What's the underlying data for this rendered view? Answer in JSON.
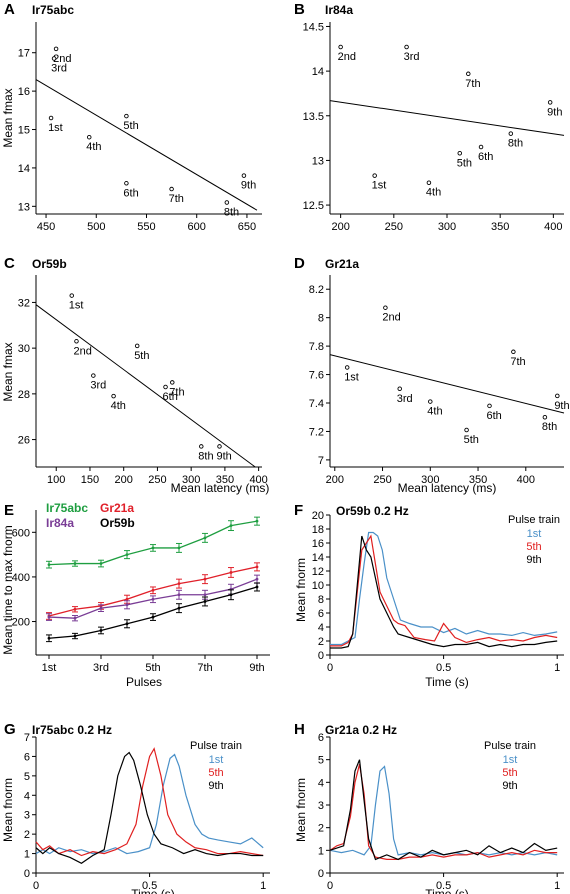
{
  "colors": {
    "blue": "#4a90c8",
    "red": "#e02020",
    "black": "#000000",
    "green": "#1e9e40",
    "purple": "#7a3d96",
    "crimson": "#e0202a"
  },
  "chart_data": [
    {
      "panel": "A",
      "type": "scatter",
      "title": "Ir75abc",
      "xlabel": "",
      "ylabel": "Mean fmax",
      "xlim": [
        440,
        665
      ],
      "ylim": [
        12.8,
        17.8
      ],
      "xticks": [
        "450",
        "500",
        "550",
        "600",
        "650"
      ],
      "xtick_values": [
        450,
        500,
        550,
        600,
        650
      ],
      "yticks": [
        "13",
        "14",
        "15",
        "16",
        "17"
      ],
      "ytick_values": [
        13,
        14,
        15,
        16,
        17
      ],
      "points": [
        {
          "label": "1st",
          "x": 455,
          "y": 15.3
        },
        {
          "label": "2nd",
          "x": 460,
          "y": 17.1
        },
        {
          "label": "3rd",
          "x": 458,
          "y": 16.85
        },
        {
          "label": "4th",
          "x": 493,
          "y": 14.8
        },
        {
          "label": "5th",
          "x": 530,
          "y": 15.35
        },
        {
          "label": "6th",
          "x": 530,
          "y": 13.6
        },
        {
          "label": "7th",
          "x": 575,
          "y": 13.45
        },
        {
          "label": "8th",
          "x": 630,
          "y": 13.1
        },
        {
          "label": "9th",
          "x": 647,
          "y": 13.8
        }
      ],
      "fit": {
        "x": [
          440,
          660
        ],
        "y": [
          16.3,
          12.9
        ]
      }
    },
    {
      "panel": "B",
      "type": "scatter",
      "title": "Ir84a",
      "xlabel": "",
      "ylabel": "",
      "xlim": [
        190,
        410
      ],
      "ylim": [
        12.4,
        14.55
      ],
      "xticks": [
        "200",
        "250",
        "300",
        "350",
        "400"
      ],
      "xtick_values": [
        200,
        250,
        300,
        350,
        400
      ],
      "yticks": [
        "12.5",
        "13",
        "13.5",
        "14",
        "14.5"
      ],
      "ytick_values": [
        12.5,
        13,
        13.5,
        14,
        14.5
      ],
      "points": [
        {
          "label": "1st",
          "x": 232,
          "y": 12.83
        },
        {
          "label": "2nd",
          "x": 200,
          "y": 14.27
        },
        {
          "label": "3rd",
          "x": 262,
          "y": 14.27
        },
        {
          "label": "4th",
          "x": 283,
          "y": 12.75
        },
        {
          "label": "5th",
          "x": 312,
          "y": 13.08
        },
        {
          "label": "6th",
          "x": 332,
          "y": 13.15
        },
        {
          "label": "7th",
          "x": 320,
          "y": 13.97
        },
        {
          "label": "8th",
          "x": 360,
          "y": 13.3
        },
        {
          "label": "9th",
          "x": 397,
          "y": 13.65
        }
      ],
      "fit": {
        "x": [
          190,
          410
        ],
        "y": [
          13.67,
          13.28
        ]
      }
    },
    {
      "panel": "C",
      "type": "scatter",
      "title": "Or59b",
      "xlabel": "Mean latency (ms)",
      "ylabel": "Mean fmax",
      "xlim": [
        70,
        405
      ],
      "ylim": [
        24.8,
        33.2
      ],
      "xticks": [
        "100",
        "150",
        "200",
        "250",
        "300",
        "350",
        "400"
      ],
      "xtick_values": [
        100,
        150,
        200,
        250,
        300,
        350,
        400
      ],
      "yticks": [
        "26",
        "28",
        "30",
        "32"
      ],
      "ytick_values": [
        26,
        28,
        30,
        32
      ],
      "points": [
        {
          "label": "1st",
          "x": 123,
          "y": 32.3
        },
        {
          "label": "2nd",
          "x": 130,
          "y": 30.3
        },
        {
          "label": "3rd",
          "x": 155,
          "y": 28.8
        },
        {
          "label": "4th",
          "x": 185,
          "y": 27.9
        },
        {
          "label": "5th",
          "x": 220,
          "y": 30.1
        },
        {
          "label": "6th",
          "x": 262,
          "y": 28.3
        },
        {
          "label": "7th",
          "x": 272,
          "y": 28.5
        },
        {
          "label": "8th",
          "x": 315,
          "y": 25.7
        },
        {
          "label": "9th",
          "x": 342,
          "y": 25.7
        }
      ],
      "fit": {
        "x": [
          70,
          395
        ],
        "y": [
          31.9,
          24.8
        ]
      }
    },
    {
      "panel": "D",
      "type": "scatter",
      "title": "Gr21a",
      "xlabel": "Mean latency (ms)",
      "ylabel": "",
      "xlim": [
        195,
        440
      ],
      "ylim": [
        6.95,
        8.3
      ],
      "xticks": [
        "200",
        "250",
        "300",
        "350",
        "400"
      ],
      "xtick_values": [
        200,
        250,
        300,
        350,
        400
      ],
      "yticks": [
        "7",
        "7.2",
        "7.4",
        "7.6",
        "7.8",
        "8",
        "8.2"
      ],
      "ytick_values": [
        7,
        7.2,
        7.4,
        7.6,
        7.8,
        8,
        8.2
      ],
      "points": [
        {
          "label": "1st",
          "x": 213,
          "y": 7.65
        },
        {
          "label": "2nd",
          "x": 253,
          "y": 8.07
        },
        {
          "label": "3rd",
          "x": 268,
          "y": 7.5
        },
        {
          "label": "4th",
          "x": 300,
          "y": 7.41
        },
        {
          "label": "5th",
          "x": 338,
          "y": 7.21
        },
        {
          "label": "6th",
          "x": 362,
          "y": 7.38
        },
        {
          "label": "7th",
          "x": 387,
          "y": 7.76
        },
        {
          "label": "8th",
          "x": 420,
          "y": 7.3
        },
        {
          "label": "9th",
          "x": 433,
          "y": 7.45
        }
      ],
      "fit": {
        "x": [
          195,
          440
        ],
        "y": [
          7.74,
          7.33
        ]
      }
    },
    {
      "panel": "E",
      "type": "line",
      "title": "",
      "xlabel": "Pulses",
      "ylabel": "Mean time to max fnorm",
      "xlim": [
        0.5,
        9.5
      ],
      "ylim": [
        50,
        700
      ],
      "xticks": [
        "1st",
        "3rd",
        "5th",
        "7th",
        "9th"
      ],
      "xtick_values": [
        1,
        3,
        5,
        7,
        9
      ],
      "yticks": [
        "200",
        "400",
        "600"
      ],
      "ytick_values": [
        200,
        400,
        600
      ],
      "series": [
        {
          "name": "Ir75abc",
          "color": "#1e9e40",
          "y": [
            455,
            460,
            460,
            500,
            530,
            530,
            575,
            630,
            650
          ]
        },
        {
          "name": "Gr21a",
          "color": "#e0202a",
          "y": [
            225,
            255,
            270,
            300,
            340,
            370,
            390,
            420,
            445
          ]
        },
        {
          "name": "Ir84a",
          "color": "#7a3d96",
          "y": [
            220,
            215,
            260,
            275,
            300,
            320,
            320,
            345,
            390
          ]
        },
        {
          "name": "Or59b",
          "color": "#000000",
          "y": [
            125,
            135,
            160,
            190,
            220,
            260,
            290,
            320,
            355
          ]
        }
      ],
      "errors": [
        15,
        12,
        15,
        18,
        15,
        20,
        20,
        22,
        18
      ]
    },
    {
      "panel": "F",
      "type": "line",
      "title": "Or59b 0.2 Hz",
      "xlabel": "Time (s)",
      "ylabel": "Mean fnorm",
      "xlim": [
        0,
        1.03
      ],
      "ylim": [
        0,
        20
      ],
      "xticks": [
        "0",
        "0.5",
        "1"
      ],
      "xtick_values": [
        0,
        0.5,
        1
      ],
      "yticks": [
        "0",
        "2",
        "4",
        "6",
        "8",
        "10",
        "12",
        "14",
        "16",
        "18",
        "20"
      ],
      "ytick_values": [
        0,
        2,
        4,
        6,
        8,
        10,
        12,
        14,
        16,
        18,
        20
      ],
      "legend_title": "Pulse train",
      "series": [
        {
          "name": "1st",
          "color": "#4a90c8",
          "x": [
            0,
            0.05,
            0.08,
            0.11,
            0.13,
            0.15,
            0.17,
            0.19,
            0.21,
            0.23,
            0.25,
            0.28,
            0.31,
            0.35,
            0.4,
            0.45,
            0.5,
            0.55,
            0.6,
            0.65,
            0.7,
            0.75,
            0.8,
            0.85,
            0.9,
            0.95,
            1.0
          ],
          "y": [
            1.5,
            1.5,
            2,
            2.5,
            8,
            13,
            17.5,
            17.5,
            17,
            15,
            11,
            8,
            5,
            4.5,
            4,
            4,
            3.2,
            3.8,
            3,
            3.5,
            3,
            3,
            2.8,
            3.2,
            2.8,
            3,
            3.3
          ]
        },
        {
          "name": "5th",
          "color": "#e02020",
          "x": [
            0,
            0.05,
            0.08,
            0.1,
            0.12,
            0.14,
            0.16,
            0.18,
            0.2,
            0.22,
            0.25,
            0.28,
            0.3,
            0.33,
            0.37,
            0.42,
            0.46,
            0.5,
            0.55,
            0.6,
            0.65,
            0.7,
            0.75,
            0.8,
            0.85,
            0.9,
            0.95,
            1.0
          ],
          "y": [
            1.3,
            1.3,
            1.8,
            3,
            9,
            15,
            16,
            17,
            13,
            9,
            7,
            5,
            4.5,
            4.2,
            2.5,
            2.2,
            2,
            4.5,
            2.5,
            1.8,
            2.2,
            2.5,
            2,
            2.2,
            2,
            2.5,
            2.8,
            2.5
          ]
        },
        {
          "name": "9th",
          "color": "#000000",
          "x": [
            0,
            0.05,
            0.08,
            0.1,
            0.12,
            0.14,
            0.16,
            0.18,
            0.2,
            0.22,
            0.25,
            0.28,
            0.3,
            0.35,
            0.4,
            0.45,
            0.5,
            0.55,
            0.6,
            0.65,
            0.7,
            0.75,
            0.8,
            0.85,
            0.9,
            0.95,
            1.0
          ],
          "y": [
            1,
            1,
            1.2,
            3,
            10,
            17,
            15,
            14,
            11,
            8,
            6,
            4,
            3,
            2.5,
            2,
            1.5,
            1.2,
            1.5,
            1.5,
            1.8,
            1.2,
            1.5,
            1.2,
            1.5,
            1.5,
            1.8,
            2
          ]
        }
      ]
    },
    {
      "panel": "G",
      "type": "line",
      "title": "Ir75abc 0.2 Hz",
      "xlabel": "Time (s)",
      "ylabel": "Mean fnorm",
      "xlim": [
        0,
        1.03
      ],
      "ylim": [
        0,
        7
      ],
      "xticks": [
        "0",
        "0.5",
        "1"
      ],
      "xtick_values": [
        0,
        0.5,
        1
      ],
      "yticks": [
        "0",
        "1",
        "2",
        "3",
        "4",
        "5",
        "6",
        "7"
      ],
      "ytick_values": [
        0,
        1,
        2,
        3,
        4,
        5,
        6,
        7
      ],
      "legend_title": "Pulse train",
      "series": [
        {
          "name": "1st",
          "color": "#4a90c8",
          "x": [
            0,
            0.03,
            0.06,
            0.1,
            0.15,
            0.2,
            0.25,
            0.3,
            0.35,
            0.4,
            0.45,
            0.5,
            0.53,
            0.56,
            0.59,
            0.61,
            0.63,
            0.66,
            0.7,
            0.73,
            0.76,
            0.8,
            0.85,
            0.9,
            0.95,
            1.0
          ],
          "y": [
            1,
            1.2,
            1,
            1.3,
            1.1,
            1.2,
            1,
            1.1,
            1.3,
            1,
            1.1,
            1.3,
            2.5,
            4.5,
            5.9,
            6.1,
            5.5,
            4,
            2.5,
            2,
            1.8,
            1.7,
            1.6,
            1.5,
            1.8,
            1.3
          ]
        },
        {
          "name": "5th",
          "color": "#e02020",
          "x": [
            0,
            0.03,
            0.06,
            0.1,
            0.15,
            0.2,
            0.25,
            0.3,
            0.35,
            0.4,
            0.44,
            0.47,
            0.5,
            0.52,
            0.55,
            0.58,
            0.62,
            0.66,
            0.7,
            0.75,
            0.8,
            0.85,
            0.9,
            0.95,
            1.0
          ],
          "y": [
            1.6,
            1.2,
            1.4,
            1,
            1.2,
            0.9,
            1.1,
            1,
            1.2,
            1.5,
            2.5,
            4.5,
            6,
            6.4,
            5,
            3,
            2,
            1.6,
            1.3,
            1.2,
            1,
            1,
            1.1,
            1,
            0.9
          ]
        },
        {
          "name": "9th",
          "color": "#000000",
          "x": [
            0,
            0.03,
            0.06,
            0.1,
            0.15,
            0.2,
            0.25,
            0.3,
            0.33,
            0.36,
            0.39,
            0.41,
            0.43,
            0.46,
            0.49,
            0.52,
            0.55,
            0.6,
            0.65,
            0.7,
            0.75,
            0.8,
            0.85,
            0.9,
            0.95,
            1.0
          ],
          "y": [
            1.3,
            1,
            1.3,
            1,
            0.8,
            0.5,
            0.9,
            1.2,
            3,
            5,
            6,
            6.2,
            5.8,
            4.5,
            3,
            2,
            1.5,
            1.3,
            1,
            1.2,
            1,
            0.9,
            1,
            1,
            0.9,
            0.9
          ]
        }
      ]
    },
    {
      "panel": "H",
      "type": "line",
      "title": "Gr21a 0.2 Hz",
      "xlabel": "Time (s)",
      "ylabel": "Mean fnorm",
      "xlim": [
        0,
        1.03
      ],
      "ylim": [
        0,
        6
      ],
      "xticks": [
        "0",
        "0.5",
        "1"
      ],
      "xtick_values": [
        0,
        0.5,
        1
      ],
      "yticks": [
        "0",
        "1",
        "2",
        "3",
        "4",
        "5",
        "6"
      ],
      "ytick_values": [
        0,
        1,
        2,
        3,
        4,
        5,
        6
      ],
      "legend_title": "Pulse train",
      "series": [
        {
          "name": "1st",
          "color": "#4a90c8",
          "x": [
            0,
            0.05,
            0.1,
            0.15,
            0.18,
            0.2,
            0.22,
            0.24,
            0.26,
            0.28,
            0.3,
            0.35,
            0.4,
            0.45,
            0.5,
            0.55,
            0.6,
            0.65,
            0.7,
            0.75,
            0.8,
            0.85,
            0.9,
            0.95,
            1.0
          ],
          "y": [
            1,
            0.9,
            1,
            0.8,
            1.2,
            3,
            4.5,
            4.7,
            3.5,
            1.5,
            0.8,
            0.9,
            0.8,
            0.9,
            0.8,
            0.9,
            0.8,
            0.9,
            0.8,
            0.9,
            0.8,
            0.9,
            0.8,
            0.9,
            0.8
          ]
        },
        {
          "name": "5th",
          "color": "#e02020",
          "x": [
            0,
            0.03,
            0.06,
            0.09,
            0.11,
            0.13,
            0.15,
            0.17,
            0.2,
            0.25,
            0.3,
            0.35,
            0.4,
            0.45,
            0.5,
            0.55,
            0.6,
            0.65,
            0.7,
            0.75,
            0.8,
            0.85,
            0.9,
            0.95,
            1.0
          ],
          "y": [
            1,
            1.2,
            1.3,
            2.5,
            4,
            4.8,
            3.5,
            1.2,
            0.7,
            0.6,
            0.6,
            0.7,
            0.7,
            0.8,
            0.7,
            0.8,
            0.8,
            0.9,
            0.7,
            0.8,
            0.9,
            0.8,
            1,
            0.9,
            0.9
          ]
        },
        {
          "name": "9th",
          "color": "#000000",
          "x": [
            0,
            0.03,
            0.06,
            0.09,
            0.11,
            0.13,
            0.15,
            0.17,
            0.2,
            0.25,
            0.3,
            0.35,
            0.4,
            0.45,
            0.5,
            0.55,
            0.6,
            0.65,
            0.7,
            0.75,
            0.8,
            0.85,
            0.9,
            0.95,
            1.0
          ],
          "y": [
            1,
            1.1,
            1.2,
            2.8,
            4.5,
            5,
            3.2,
            1.5,
            0.6,
            0.8,
            0.6,
            0.9,
            0.7,
            1,
            0.8,
            0.9,
            1,
            0.8,
            1.2,
            0.9,
            1.1,
            0.9,
            1.3,
            1,
            1.1
          ]
        }
      ]
    }
  ]
}
